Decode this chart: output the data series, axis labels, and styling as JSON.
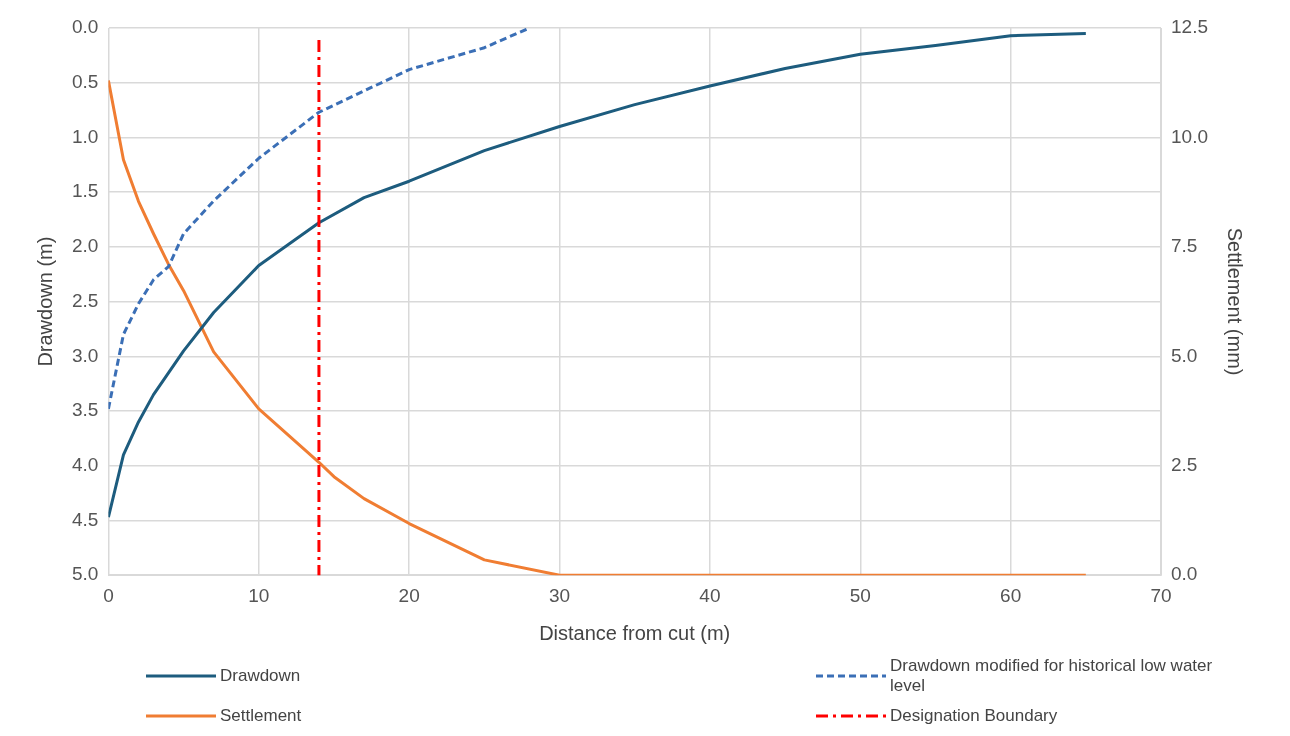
{
  "chart_data": {
    "type": "line",
    "xlabel": "Distance from cut (m)",
    "ylabel": "Drawdown (m)",
    "y2label": "Settlement (mm)",
    "xlim": [
      0,
      70
    ],
    "xticks": [
      0,
      10,
      20,
      30,
      40,
      50,
      60,
      70
    ],
    "ylim": [
      5,
      0
    ],
    "yticks": [
      {
        "value": 0,
        "label": "0.0"
      },
      {
        "value": 0.5,
        "label": "0.5"
      },
      {
        "value": 1,
        "label": "1.0"
      },
      {
        "value": 1.5,
        "label": "1.5"
      },
      {
        "value": 2,
        "label": "2.0"
      },
      {
        "value": 2.5,
        "label": "2.5"
      },
      {
        "value": 3,
        "label": "3.0"
      },
      {
        "value": 3.5,
        "label": "3.5"
      },
      {
        "value": 4,
        "label": "4.0"
      },
      {
        "value": 4.5,
        "label": "4.5"
      },
      {
        "value": 5,
        "label": "5.0"
      }
    ],
    "y2lim": [
      0,
      12.5
    ],
    "y2ticks": [
      {
        "value": 0,
        "label": "0.0"
      },
      {
        "value": 2.5,
        "label": "2.5"
      },
      {
        "value": 5,
        "label": "5.0"
      },
      {
        "value": 7.5,
        "label": "7.5"
      },
      {
        "value": 10,
        "label": "10.0"
      },
      {
        "value": 12.5,
        "label": "12.5"
      }
    ],
    "grid": true,
    "legend": "bottom",
    "marker": "none",
    "series": [
      {
        "name": "Drawdown",
        "color": "#1d5c7e",
        "line_style": "solid",
        "x": [
          0,
          1,
          2,
          3,
          5,
          7,
          10,
          14,
          17,
          20,
          25,
          30,
          35,
          40,
          45,
          50,
          55,
          60,
          65
        ],
        "values": [
          4.47,
          3.9,
          3.6,
          3.35,
          2.95,
          2.6,
          2.17,
          1.78,
          1.55,
          1.4,
          1.12,
          0.9,
          0.7,
          0.53,
          0.37,
          0.24,
          0.16,
          0.07,
          0.05
        ]
      },
      {
        "name": "Drawdown modified for historical low water level",
        "color": "#3b6fb6",
        "line_style": "dashed",
        "x": [
          0,
          1,
          2,
          3,
          4,
          5,
          7,
          10,
          14,
          20,
          25,
          28
        ],
        "values": [
          3.48,
          2.8,
          2.52,
          2.3,
          2.18,
          1.88,
          1.58,
          1.19,
          0.77,
          0.38,
          0.18,
          0
        ]
      },
      {
        "name": "Settlement",
        "color": "#f07d32",
        "line_style": "solid",
        "axis": "y2",
        "x": [
          0,
          1,
          2,
          3,
          4,
          5,
          7,
          10,
          14,
          15,
          17,
          20,
          25,
          30,
          40,
          50,
          60,
          65
        ],
        "values": [
          11.3,
          9.49,
          8.54,
          7.8,
          7.1,
          6.5,
          5.1,
          3.8,
          2.58,
          2.25,
          1.75,
          1.18,
          0.35,
          0,
          0,
          0,
          0,
          0
        ]
      }
    ],
    "ref_lines": [
      {
        "axis": "x",
        "value": 14,
        "label": "Designation Boundary",
        "color": "#ff0000",
        "line_style": "dashdot"
      }
    ]
  }
}
